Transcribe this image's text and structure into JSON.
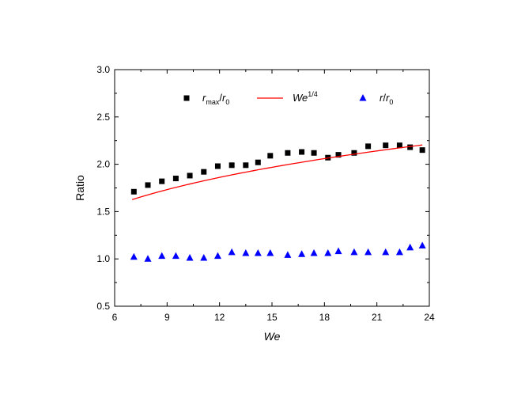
{
  "chart_data": {
    "type": "scatter",
    "title": "",
    "xlabel": "We",
    "ylabel": "Ratio",
    "xlim": [
      6,
      24
    ],
    "ylim": [
      0.5,
      3.0
    ],
    "x_ticks": [
      "6",
      "9",
      "12",
      "15",
      "18",
      "21",
      "24"
    ],
    "y_ticks": [
      "0.5",
      "1.0",
      "1.5",
      "2.0",
      "2.5",
      "3.0"
    ],
    "grid": false,
    "legend_position": "top",
    "legend": {
      "rmax": {
        "base": "r",
        "sub": "max",
        "slash": "/",
        "base2": "r",
        "sub2": "0"
      },
      "we": {
        "base": "We",
        "sup": "1/4"
      },
      "r": {
        "base": "r",
        "slash": "/",
        "base2": "r",
        "sub2": "0"
      }
    },
    "series": [
      {
        "marker": "square",
        "color": "#000000",
        "x": [
          7.1,
          7.9,
          8.7,
          9.5,
          10.3,
          11.1,
          11.9,
          12.7,
          13.5,
          14.2,
          14.9,
          15.9,
          16.7,
          17.4,
          18.2,
          18.8,
          19.7,
          20.5,
          21.5,
          22.3,
          22.9,
          23.6
        ],
        "y": [
          1.71,
          1.78,
          1.82,
          1.85,
          1.88,
          1.92,
          1.98,
          1.99,
          1.99,
          2.02,
          2.09,
          2.12,
          2.13,
          2.12,
          2.07,
          2.1,
          2.12,
          2.19,
          2.2,
          2.2,
          2.18,
          2.15
        ]
      },
      {
        "marker": "line",
        "color": "#ff0000",
        "function": "We^(1/4)",
        "x_range": [
          7.0,
          23.6
        ]
      },
      {
        "marker": "triangle",
        "color": "#0000ff",
        "x": [
          7.1,
          7.9,
          8.7,
          9.5,
          10.3,
          11.1,
          11.9,
          12.7,
          13.5,
          14.2,
          14.9,
          15.9,
          16.7,
          17.4,
          18.2,
          18.8,
          19.7,
          20.5,
          21.5,
          22.3,
          22.9,
          23.6
        ],
        "y": [
          1.02,
          1.0,
          1.03,
          1.03,
          1.01,
          1.01,
          1.03,
          1.07,
          1.06,
          1.06,
          1.06,
          1.04,
          1.05,
          1.06,
          1.06,
          1.08,
          1.07,
          1.07,
          1.07,
          1.07,
          1.12,
          1.14
        ]
      }
    ]
  }
}
